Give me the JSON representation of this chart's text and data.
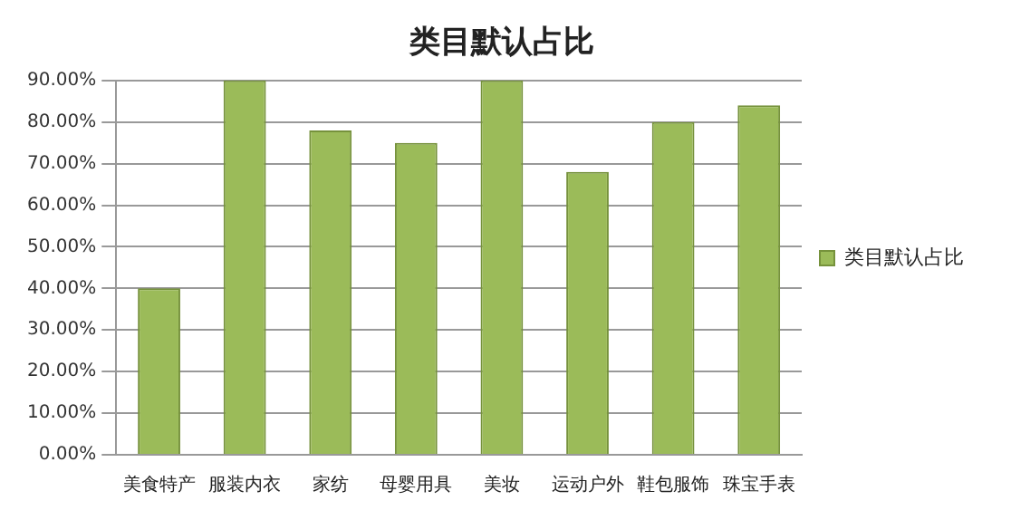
{
  "chart_data": {
    "type": "bar",
    "title": "类目默认占比",
    "categories": [
      "美食特产",
      "服装内衣",
      "家纺",
      "母婴用具",
      "美妆",
      "运动户外",
      "鞋包服饰",
      "珠宝手表"
    ],
    "series": [
      {
        "name": "类目默认占比",
        "color": "#9bbb59",
        "values": [
          40,
          90,
          78,
          75,
          90,
          68,
          80,
          84
        ]
      }
    ],
    "ylim": [
      0,
      90
    ],
    "yticks": [
      {
        "value": 0,
        "label": "0.00%"
      },
      {
        "value": 10,
        "label": "10.00%"
      },
      {
        "value": 20,
        "label": "20.00%"
      },
      {
        "value": 30,
        "label": "30.00%"
      },
      {
        "value": 40,
        "label": "40.00%"
      },
      {
        "value": 50,
        "label": "50.00%"
      },
      {
        "value": 60,
        "label": "60.00%"
      },
      {
        "value": 70,
        "label": "70.00%"
      },
      {
        "value": 80,
        "label": "80.00%"
      },
      {
        "value": 90,
        "label": "90.00%"
      }
    ],
    "grid": "y",
    "legend": "right"
  }
}
